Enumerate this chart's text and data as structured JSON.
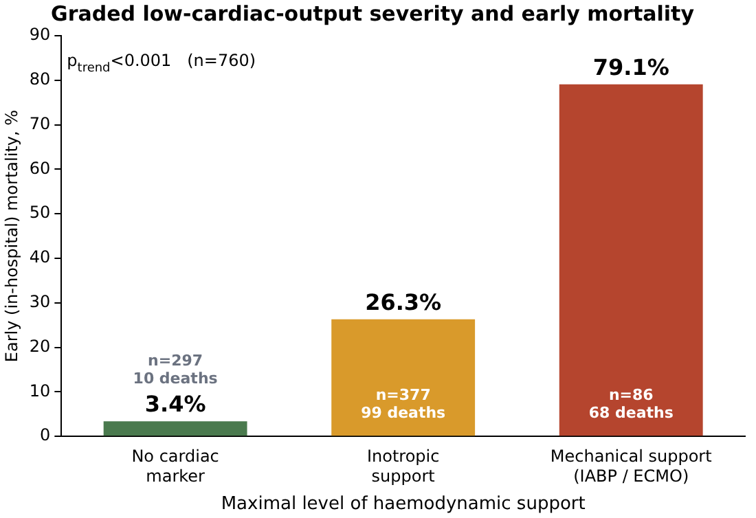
{
  "chart_data": {
    "type": "bar",
    "title": "Graded low-cardiac-output severity and early mortality",
    "xlabel": "Maximal level of haemodynamic support",
    "ylabel": "Early (in-hospital) mortality, %",
    "categories": [
      "No cardiac\nmarker",
      "Inotropic\nsupport",
      "Mechanical support\n(IABP / ECMO)"
    ],
    "values": [
      3.4,
      26.3,
      79.1
    ],
    "colors": [
      "#4a7a4e",
      "#d99a2b",
      "#b5452e"
    ],
    "value_labels": [
      "3.4%",
      "26.3%",
      "79.1%"
    ],
    "ylim": [
      0,
      90
    ],
    "yticks": [
      0,
      10,
      20,
      30,
      40,
      50,
      60,
      70,
      80,
      90
    ],
    "grid": false,
    "legend": false,
    "annotations": [
      "p$_{trend}$<0.001   (n=760)",
      "n=297\n10 deaths",
      "n=377\n99 deaths",
      "n=86\n68 deaths"
    ]
  }
}
